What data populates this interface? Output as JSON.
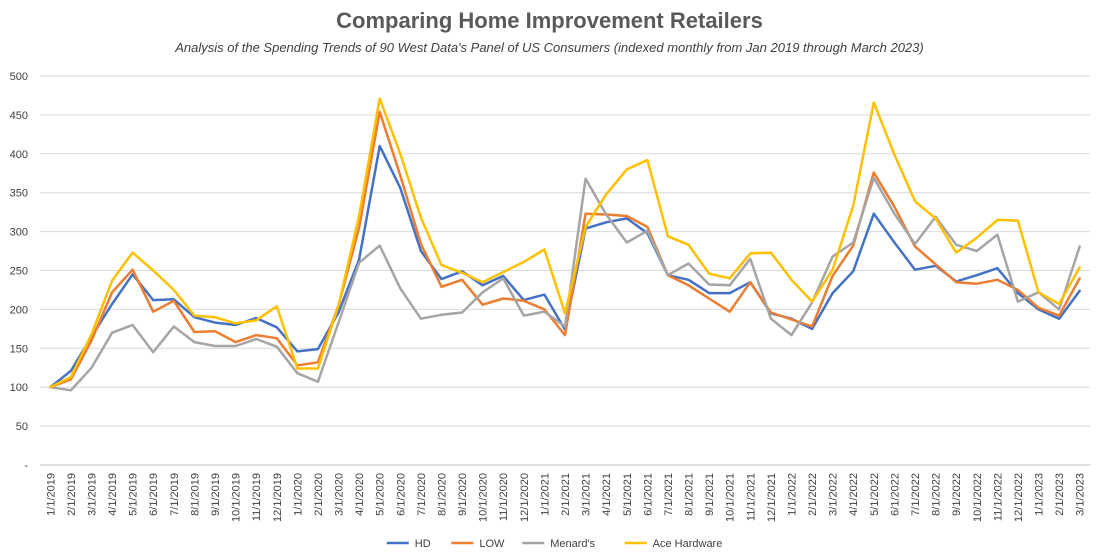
{
  "chart_data": {
    "type": "line",
    "title": "Comparing Home Improvement Retailers",
    "subtitle": "Analysis of the Spending Trends of 90 West Data's Panel of US Consumers (indexed monthly from Jan 2019 through March 2023)",
    "xlabel": "",
    "ylabel": "",
    "ylim": [
      0,
      500
    ],
    "yticks": [
      0,
      50,
      100,
      150,
      200,
      250,
      300,
      350,
      400,
      450,
      500
    ],
    "ytick_labels": [
      "-",
      "50",
      "100",
      "150",
      "200",
      "250",
      "300",
      "350",
      "400",
      "450",
      "500"
    ],
    "grid": true,
    "legend_position": "bottom",
    "categories": [
      "1/1/2019",
      "2/1/2019",
      "3/1/2019",
      "4/1/2019",
      "5/1/2019",
      "6/1/2019",
      "7/1/2019",
      "8/1/2019",
      "9/1/2019",
      "10/1/2019",
      "11/1/2019",
      "12/1/2019",
      "1/1/2020",
      "2/1/2020",
      "3/1/2020",
      "4/1/2020",
      "5/1/2020",
      "6/1/2020",
      "7/1/2020",
      "8/1/2020",
      "9/1/2020",
      "10/1/2020",
      "11/1/2020",
      "12/1/2020",
      "1/1/2021",
      "2/1/2021",
      "3/1/2021",
      "4/1/2021",
      "5/1/2021",
      "6/1/2021",
      "7/1/2021",
      "8/1/2021",
      "9/1/2021",
      "10/1/2021",
      "11/1/2021",
      "12/1/2021",
      "1/1/2022",
      "2/1/2022",
      "3/1/2022",
      "4/1/2022",
      "5/1/2022",
      "6/1/2022",
      "7/1/2022",
      "8/1/2022",
      "9/1/2022",
      "10/1/2022",
      "11/1/2022",
      "12/1/2022",
      "1/1/2023",
      "2/1/2023",
      "3/1/2023"
    ],
    "series": [
      {
        "name": "HD",
        "color": "#4472C4",
        "values": [
          100,
          121,
          165,
          207,
          245,
          212,
          213,
          190,
          183,
          180,
          189,
          177,
          146,
          149,
          196,
          264,
          410,
          356,
          275,
          239,
          249,
          231,
          243,
          212,
          219,
          174,
          304,
          312,
          317,
          298,
          244,
          238,
          221,
          221,
          235,
          195,
          188,
          175,
          221,
          249,
          323,
          286,
          251,
          256,
          236,
          244,
          253,
          221,
          200,
          188,
          224
        ]
      },
      {
        "name": "LOW",
        "color": "#ED7D31",
        "values": [
          100,
          110,
          160,
          222,
          251,
          197,
          211,
          171,
          172,
          158,
          167,
          163,
          128,
          132,
          205,
          305,
          454,
          372,
          284,
          229,
          238,
          206,
          214,
          211,
          200,
          167,
          323,
          322,
          320,
          306,
          244,
          231,
          214,
          197,
          235,
          196,
          187,
          178,
          243,
          282,
          376,
          332,
          281,
          258,
          235,
          233,
          238,
          225,
          202,
          192,
          240
        ]
      },
      {
        "name": "Menard's",
        "color": "#A5A5A5",
        "values": [
          100,
          96,
          125,
          170,
          180,
          145,
          178,
          158,
          153,
          153,
          162,
          152,
          118,
          107,
          183,
          260,
          282,
          227,
          188,
          193,
          196,
          222,
          240,
          192,
          197,
          178,
          368,
          322,
          286,
          301,
          244,
          259,
          232,
          231,
          265,
          188,
          167,
          209,
          268,
          286,
          369,
          323,
          284,
          319,
          283,
          275,
          296,
          210,
          222,
          200,
          281
        ]
      },
      {
        "name": "Ace Hardware",
        "color": "#FFC000",
        "values": [
          100,
          113,
          168,
          237,
          273,
          250,
          225,
          192,
          190,
          182,
          186,
          204,
          124,
          124,
          205,
          320,
          471,
          400,
          318,
          257,
          247,
          235,
          248,
          261,
          277,
          195,
          306,
          348,
          380,
          392,
          294,
          283,
          246,
          240,
          272,
          273,
          238,
          210,
          251,
          333,
          466,
          399,
          339,
          317,
          273,
          292,
          315,
          314,
          222,
          207,
          254
        ]
      }
    ]
  }
}
